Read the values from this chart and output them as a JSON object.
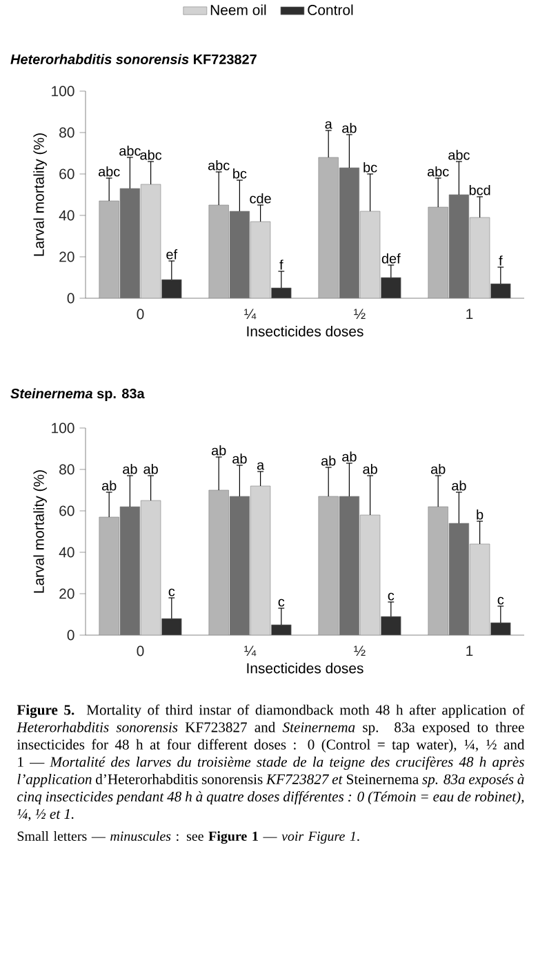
{
  "chart_data": [
    {
      "type": "bar",
      "title": "*Heterorhabditis sonorensis* KF723827",
      "xlabel": "Insecticides doses",
      "ylabel": "Larval mortality (%)",
      "categories": [
        "0",
        "¼",
        "½",
        "1"
      ],
      "ylim": [
        0,
        100
      ],
      "yticks": [
        0,
        20,
        40,
        60,
        80,
        100
      ],
      "legend": "top",
      "series": [
        {
          "color": "#b4b4b4",
          "values": [
            47,
            45,
            68,
            44
          ],
          "errors": [
            11,
            16,
            13,
            14
          ],
          "value_labels": [
            "abc",
            "abc",
            "a",
            "abc"
          ]
        },
        {
          "color": "#6e6e6e",
          "values": [
            53,
            42,
            63,
            50
          ],
          "errors": [
            15,
            15,
            16,
            16
          ],
          "value_labels": [
            "abc",
            "bc",
            "ab",
            "abc"
          ]
        },
        {
          "name": "Neem oil",
          "color": "#d2d2d2",
          "values": [
            55,
            37,
            42,
            39
          ],
          "errors": [
            11,
            8,
            18,
            10
          ],
          "value_labels": [
            "abc",
            "cde",
            "bc",
            "bcd"
          ]
        },
        {
          "name": "Control",
          "color": "#2e2e2e",
          "values": [
            9,
            5,
            10,
            7
          ],
          "errors": [
            9,
            8,
            6,
            8
          ],
          "value_labels": [
            "ef",
            "f",
            "def",
            "f"
          ]
        }
      ]
    },
    {
      "type": "bar",
      "title": "*Steinernema* sp. 83a",
      "xlabel": "Insecticides doses",
      "ylabel": "Larval mortality (%)",
      "categories": [
        "0",
        "¼",
        "½",
        "1"
      ],
      "ylim": [
        0,
        100
      ],
      "yticks": [
        0,
        20,
        40,
        60,
        80,
        100
      ],
      "series": [
        {
          "color": "#b4b4b4",
          "values": [
            57,
            70,
            67,
            62
          ],
          "errors": [
            12,
            16,
            14,
            15
          ],
          "value_labels": [
            "ab",
            "ab",
            "ab",
            "ab"
          ]
        },
        {
          "color": "#6e6e6e",
          "values": [
            62,
            67,
            67,
            54
          ],
          "errors": [
            15,
            15,
            16,
            15
          ],
          "value_labels": [
            "ab",
            "ab",
            "ab",
            "ab"
          ]
        },
        {
          "color": "#d2d2d2",
          "values": [
            65,
            72,
            58,
            44
          ],
          "errors": [
            12,
            7,
            19,
            11
          ],
          "value_labels": [
            "ab",
            "a",
            "ab",
            "b"
          ]
        },
        {
          "color": "#2e2e2e",
          "values": [
            8,
            5,
            9,
            6
          ],
          "errors": [
            10,
            8,
            7,
            8
          ],
          "value_labels": [
            "c",
            "c",
            "c",
            "c"
          ]
        }
      ],
      "annotations": [
        "**Figure 5.** Mortality of third instar of diamondback moth 48 h after application of *Heterorhabditis sonorensis* KF723827 and *Steinernema* sp. 83a exposed to three insecticides for 48 h at four different doses : 0 (Control = tap water), ¼, ½ and 1 — *Mortalité des larves du troisième stade de la teigne des crucifères 48 h après l’application* d’Heterorhabditis sonorensis *KF723827 et* Steinernema *sp. 83a exposés à cinq insecticides pendant 48 h à quatre doses différentes : 0 (Témoin = eau de robinet), ¼, ½ et 1.*",
        "Small letters — *minuscules* : see **Figure 1** — *voir Figure 1*."
      ]
    }
  ]
}
